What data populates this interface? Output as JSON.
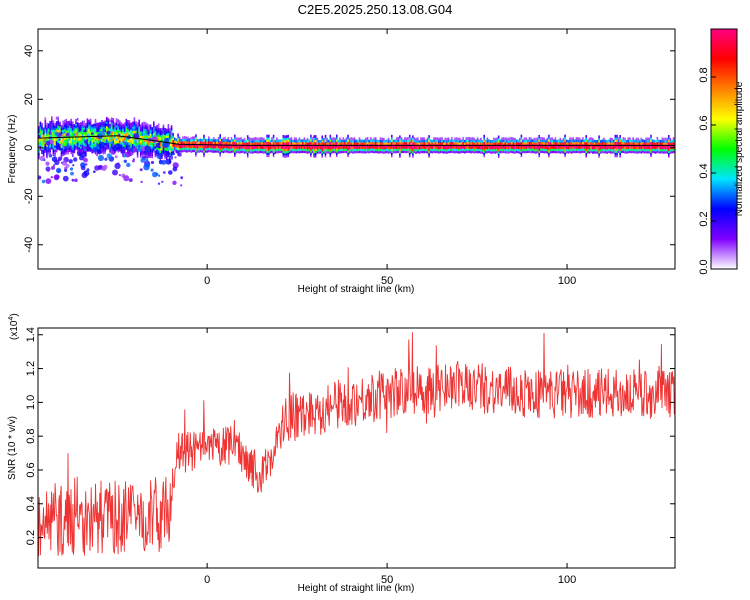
{
  "title": "C2E5.2025.250.13.08.G04",
  "chart_data": [
    {
      "type": "heatmap",
      "xlabel": "Height of straight line (km)",
      "ylabel": "Frequency (Hz)",
      "xlim": [
        -47,
        130
      ],
      "ylim": [
        -50,
        49
      ],
      "xticks": [
        0,
        50,
        100
      ],
      "yticks": [
        40,
        20,
        0,
        -20,
        -40
      ],
      "colorbar": {
        "label": "Normalized spectral amplitude",
        "range": [
          0.0,
          1.0
        ],
        "ticks": [
          0.0,
          0.2,
          0.4,
          0.6,
          0.8
        ],
        "colors": [
          "#ffffff",
          "#8000ff",
          "#0000ff",
          "#00e5ff",
          "#00ff00",
          "#ffff00",
          "#ff8000",
          "#ff0000",
          "#ff0080"
        ]
      },
      "trend_breaks": [
        {
          "x": -47,
          "y": 4
        },
        {
          "x": -25,
          "y": 5
        },
        {
          "x": -15,
          "y": 3
        },
        {
          "x": -8,
          "y": 1.5
        },
        {
          "x": 10,
          "y": 1
        },
        {
          "x": 130,
          "y": 1
        }
      ]
    },
    {
      "type": "line",
      "xlabel": "Height of straight line (km)",
      "ylabel": "SNR (10 * v/v)",
      "yscale_label": "(x10",
      "yscale_exp": "4",
      "yscale_close": ")",
      "xlim": [
        -47,
        130
      ],
      "ylim": [
        0.02,
        1.44
      ],
      "xticks": [
        0,
        50,
        100
      ],
      "yticks": [
        0.2,
        0.4,
        0.6,
        0.8,
        1.0,
        1.2,
        1.4
      ],
      "ytick_labels": [
        "0.2",
        "0.4",
        "0.6",
        "0.8",
        "1.0",
        "1.2",
        "1.4"
      ],
      "line_color": "#ee3333",
      "trend": [
        {
          "x": -47,
          "y": 0.3
        },
        {
          "x": -40,
          "y": 0.3
        },
        {
          "x": -30,
          "y": 0.32
        },
        {
          "x": -20,
          "y": 0.32
        },
        {
          "x": -11,
          "y": 0.35
        },
        {
          "x": -8,
          "y": 0.7
        },
        {
          "x": 0,
          "y": 0.72
        },
        {
          "x": 8,
          "y": 0.75
        },
        {
          "x": 15,
          "y": 0.55
        },
        {
          "x": 22,
          "y": 0.9
        },
        {
          "x": 35,
          "y": 0.98
        },
        {
          "x": 50,
          "y": 1.05
        },
        {
          "x": 70,
          "y": 1.1
        },
        {
          "x": 90,
          "y": 1.05
        },
        {
          "x": 110,
          "y": 1.05
        },
        {
          "x": 130,
          "y": 1.05
        }
      ]
    }
  ]
}
